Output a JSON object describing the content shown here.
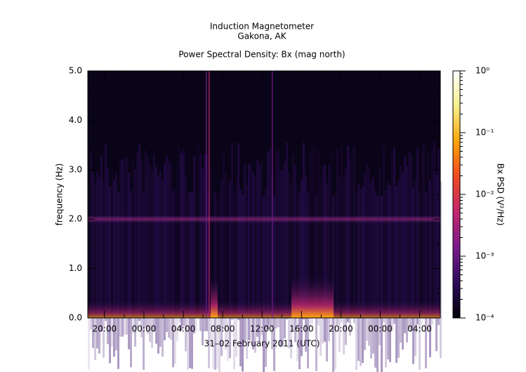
{
  "chart_data": {
    "type": "heatmap",
    "title": "Induction Magnetometer",
    "subtitle": "Gakona, AK",
    "plot_title": "Power Spectral Density: Bx (mag north)",
    "x_label": "31–02 February 2011 (UTC)",
    "y_label": "frequency (Hz)",
    "xlim": [
      18.3,
      54.1
    ],
    "xticks": [
      {
        "value": 20,
        "label": "20:00"
      },
      {
        "value": 24,
        "label": "00:00"
      },
      {
        "value": 28,
        "label": "04:00"
      },
      {
        "value": 32,
        "label": "08:00"
      },
      {
        "value": 36,
        "label": "12:00"
      },
      {
        "value": 40,
        "label": "16:00"
      },
      {
        "value": 44,
        "label": "20:00"
      },
      {
        "value": 48,
        "label": "00:00"
      },
      {
        "value": 52,
        "label": "04:00"
      }
    ],
    "ylim": [
      0,
      5
    ],
    "yticks": [
      {
        "value": 0,
        "label": "0.0"
      },
      {
        "value": 1,
        "label": "1.0"
      },
      {
        "value": 2,
        "label": "2.0"
      },
      {
        "value": 3,
        "label": "3.0"
      },
      {
        "value": 4,
        "label": "4.0"
      },
      {
        "value": 5,
        "label": "5.0"
      }
    ],
    "colorbar": {
      "label": "Bx PSD (V²/Hz)",
      "log": true,
      "lim": [
        0.0001,
        1
      ],
      "ticks": [
        {
          "value": 0.0001,
          "label": "10⁻⁴"
        },
        {
          "value": 0.001,
          "label": "10⁻³"
        },
        {
          "value": 0.01,
          "label": "10⁻²"
        },
        {
          "value": 0.1,
          "label": "10⁻¹"
        },
        {
          "value": 1,
          "label": "10⁰"
        }
      ],
      "colors": [
        "#000004",
        "#2c0b5a",
        "#7a1b8c",
        "#c2286e",
        "#f0481f",
        "#fca50a",
        "#f6f08a",
        "#ffffff"
      ]
    }
  }
}
